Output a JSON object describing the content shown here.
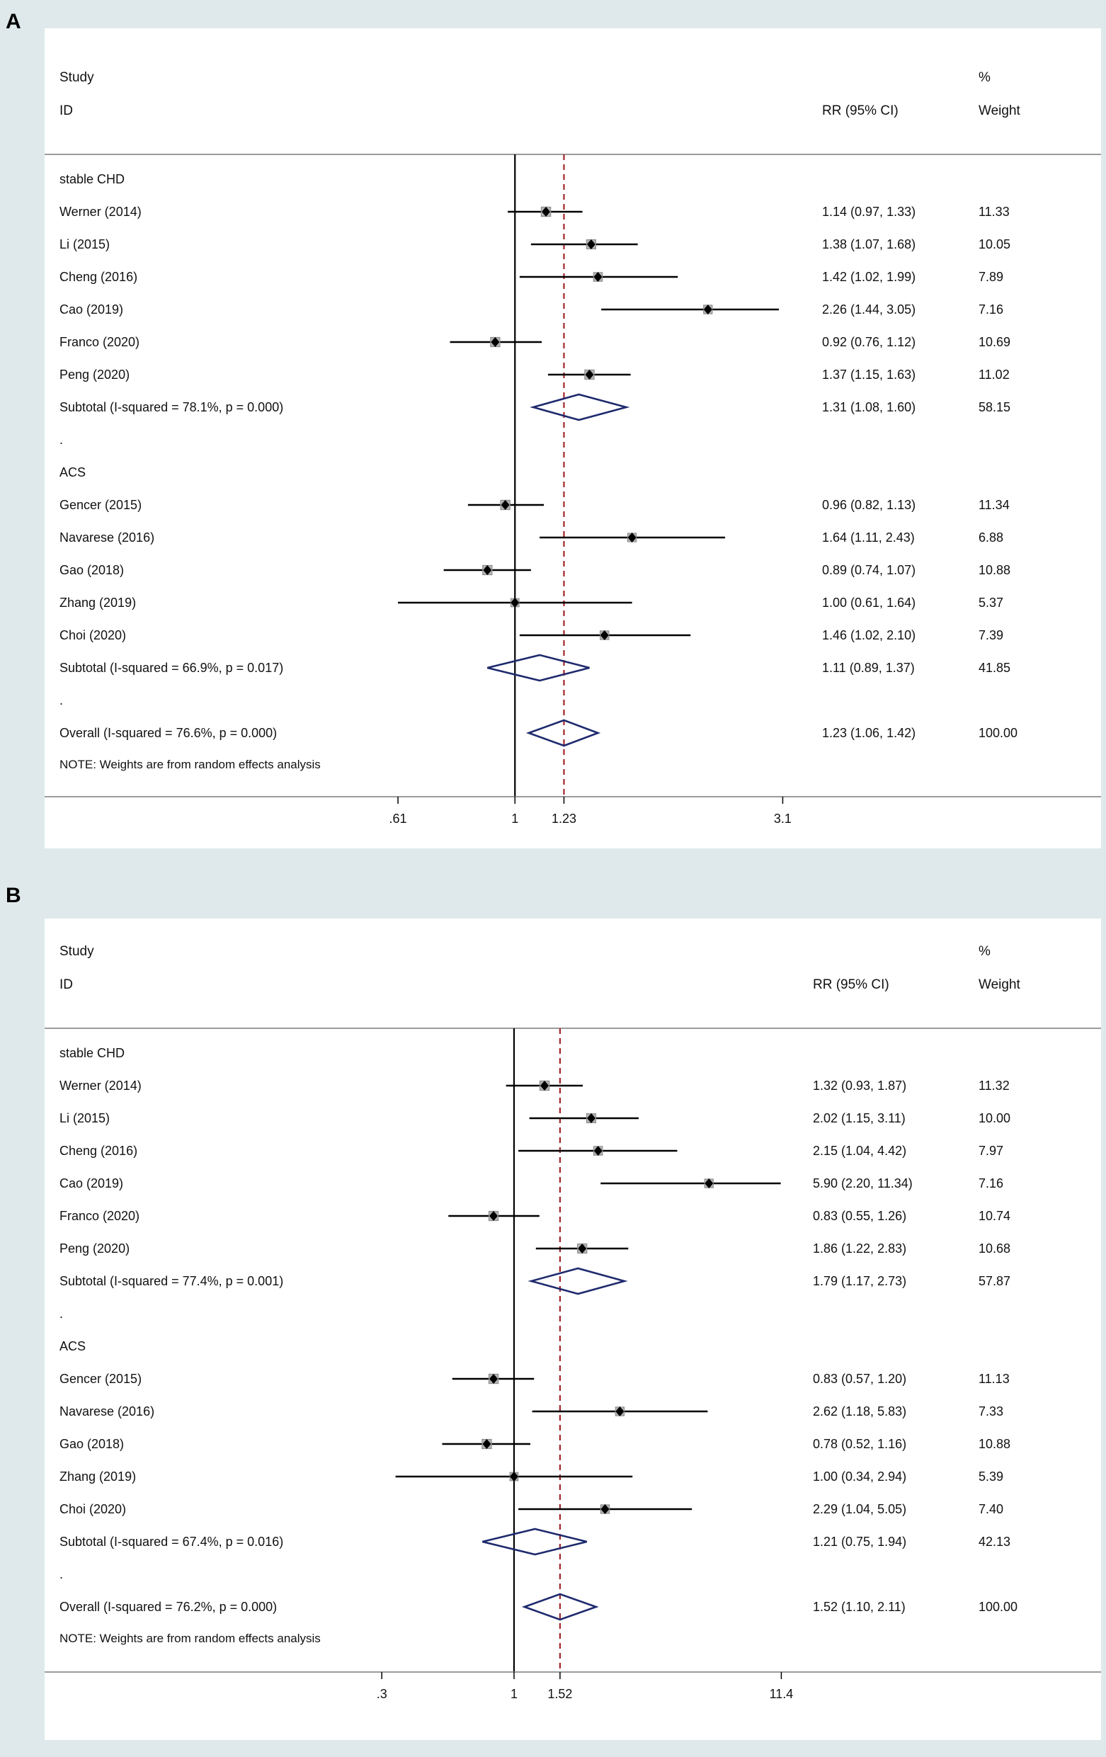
{
  "chart_data": [
    {
      "type": "forest",
      "panel_label": "A",
      "header": {
        "study": "Study",
        "id": "ID",
        "pct": "%",
        "ci": "RR (95% CI)",
        "weight": "Weight"
      },
      "x_scale": "log",
      "xlim": [
        0.4,
        3.5
      ],
      "xticks": [
        {
          "v": 0.61,
          "label": ".61"
        },
        {
          "v": 1,
          "label": "1"
        },
        {
          "v": 1.23,
          "label": "1.23"
        },
        {
          "v": 3.1,
          "label": "3.1"
        }
      ],
      "null_line": 1,
      "overall_line": 1.23,
      "rows": [
        {
          "kind": "group",
          "label": "stable CHD"
        },
        {
          "kind": "study",
          "label": "Werner (2014)",
          "rr": 1.14,
          "lo": 0.97,
          "hi": 1.33,
          "ci_text": "1.14 (0.97, 1.33)",
          "weight": "11.33"
        },
        {
          "kind": "study",
          "label": "Li (2015)",
          "rr": 1.38,
          "lo": 1.07,
          "hi": 1.68,
          "ci_text": "1.38 (1.07, 1.68)",
          "weight": "10.05"
        },
        {
          "kind": "study",
          "label": "Cheng (2016)",
          "rr": 1.42,
          "lo": 1.02,
          "hi": 1.99,
          "ci_text": "1.42 (1.02, 1.99)",
          "weight": "7.89"
        },
        {
          "kind": "study",
          "label": "Cao (2019)",
          "rr": 2.26,
          "lo": 1.44,
          "hi": 3.05,
          "ci_text": "2.26 (1.44, 3.05)",
          "weight": "7.16"
        },
        {
          "kind": "study",
          "label": "Franco (2020)",
          "rr": 0.92,
          "lo": 0.76,
          "hi": 1.12,
          "ci_text": "0.92 (0.76, 1.12)",
          "weight": "10.69"
        },
        {
          "kind": "study",
          "label": "Peng (2020)",
          "rr": 1.37,
          "lo": 1.15,
          "hi": 1.63,
          "ci_text": "1.37 (1.15, 1.63)",
          "weight": "11.02"
        },
        {
          "kind": "subtotal",
          "label": "Subtotal  (I-squared = 78.1%, p = 0.000)",
          "rr": 1.31,
          "lo": 1.08,
          "hi": 1.6,
          "ci_text": "1.31 (1.08, 1.60)",
          "weight": "58.15"
        },
        {
          "kind": "spacer",
          "label": "."
        },
        {
          "kind": "group",
          "label": "ACS"
        },
        {
          "kind": "study",
          "label": "Gencer (2015)",
          "rr": 0.96,
          "lo": 0.82,
          "hi": 1.13,
          "ci_text": "0.96 (0.82, 1.13)",
          "weight": "11.34"
        },
        {
          "kind": "study",
          "label": "Navarese (2016)",
          "rr": 1.64,
          "lo": 1.11,
          "hi": 2.43,
          "ci_text": "1.64 (1.11, 2.43)",
          "weight": "6.88"
        },
        {
          "kind": "study",
          "label": "Gao (2018)",
          "rr": 0.89,
          "lo": 0.74,
          "hi": 1.07,
          "ci_text": "0.89 (0.74, 1.07)",
          "weight": "10.88"
        },
        {
          "kind": "study",
          "label": "Zhang (2019)",
          "rr": 1.0,
          "lo": 0.61,
          "hi": 1.64,
          "ci_text": "1.00 (0.61, 1.64)",
          "weight": "5.37"
        },
        {
          "kind": "study",
          "label": "Choi (2020)",
          "rr": 1.46,
          "lo": 1.02,
          "hi": 2.1,
          "ci_text": "1.46 (1.02, 2.10)",
          "weight": "7.39"
        },
        {
          "kind": "subtotal",
          "label": "Subtotal  (I-squared = 66.9%, p = 0.017)",
          "rr": 1.11,
          "lo": 0.89,
          "hi": 1.37,
          "ci_text": "1.11 (0.89, 1.37)",
          "weight": "41.85"
        },
        {
          "kind": "spacer",
          "label": "."
        },
        {
          "kind": "subtotal",
          "label": "Overall  (I-squared = 76.6%, p = 0.000)",
          "rr": 1.23,
          "lo": 1.06,
          "hi": 1.42,
          "ci_text": "1.23 (1.06, 1.42)",
          "weight": "100.00"
        }
      ],
      "note": "NOTE: Weights are from random effects analysis"
    },
    {
      "type": "forest",
      "panel_label": "B",
      "header": {
        "study": "Study",
        "id": "ID",
        "pct": "%",
        "ci": "RR (95% CI)",
        "weight": "Weight"
      },
      "x_scale": "log",
      "xlim": [
        0.14,
        15
      ],
      "xticks": [
        {
          "v": 0.3,
          "label": ".3"
        },
        {
          "v": 1,
          "label": "1"
        },
        {
          "v": 1.52,
          "label": "1.52"
        },
        {
          "v": 11.4,
          "label": "11.4"
        }
      ],
      "null_line": 1,
      "overall_line": 1.52,
      "rows": [
        {
          "kind": "group",
          "label": "stable CHD"
        },
        {
          "kind": "study",
          "label": "Werner (2014)",
          "rr": 1.32,
          "lo": 0.93,
          "hi": 1.87,
          "ci_text": "1.32 (0.93, 1.87)",
          "weight": "11.32"
        },
        {
          "kind": "study",
          "label": "Li (2015)",
          "rr": 2.02,
          "lo": 1.15,
          "hi": 3.11,
          "ci_text": "2.02 (1.15, 3.11)",
          "weight": "10.00"
        },
        {
          "kind": "study",
          "label": "Cheng (2016)",
          "rr": 2.15,
          "lo": 1.04,
          "hi": 4.42,
          "ci_text": "2.15 (1.04, 4.42)",
          "weight": "7.97"
        },
        {
          "kind": "study",
          "label": "Cao (2019)",
          "rr": 5.9,
          "lo": 2.2,
          "hi": 11.34,
          "ci_text": "5.90 (2.20, 11.34)",
          "weight": "7.16"
        },
        {
          "kind": "study",
          "label": "Franco (2020)",
          "rr": 0.83,
          "lo": 0.55,
          "hi": 1.26,
          "ci_text": "0.83 (0.55, 1.26)",
          "weight": "10.74"
        },
        {
          "kind": "study",
          "label": "Peng (2020)",
          "rr": 1.86,
          "lo": 1.22,
          "hi": 2.83,
          "ci_text": "1.86 (1.22, 2.83)",
          "weight": "10.68"
        },
        {
          "kind": "subtotal",
          "label": "Subtotal  (I-squared = 77.4%, p = 0.001)",
          "rr": 1.79,
          "lo": 1.17,
          "hi": 2.73,
          "ci_text": "1.79 (1.17, 2.73)",
          "weight": "57.87"
        },
        {
          "kind": "spacer",
          "label": "."
        },
        {
          "kind": "group",
          "label": "ACS"
        },
        {
          "kind": "study",
          "label": "Gencer (2015)",
          "rr": 0.83,
          "lo": 0.57,
          "hi": 1.2,
          "ci_text": "0.83 (0.57, 1.20)",
          "weight": "11.13"
        },
        {
          "kind": "study",
          "label": "Navarese (2016)",
          "rr": 2.62,
          "lo": 1.18,
          "hi": 5.83,
          "ci_text": "2.62 (1.18, 5.83)",
          "weight": "7.33"
        },
        {
          "kind": "study",
          "label": "Gao (2018)",
          "rr": 0.78,
          "lo": 0.52,
          "hi": 1.16,
          "ci_text": "0.78 (0.52, 1.16)",
          "weight": "10.88"
        },
        {
          "kind": "study",
          "label": "Zhang (2019)",
          "rr": 1.0,
          "lo": 0.34,
          "hi": 2.94,
          "ci_text": "1.00 (0.34, 2.94)",
          "weight": "5.39"
        },
        {
          "kind": "study",
          "label": "Choi (2020)",
          "rr": 2.29,
          "lo": 1.04,
          "hi": 5.05,
          "ci_text": "2.29 (1.04, 5.05)",
          "weight": "7.40"
        },
        {
          "kind": "subtotal",
          "label": "Subtotal  (I-squared = 67.4%, p = 0.016)",
          "rr": 1.21,
          "lo": 0.75,
          "hi": 1.94,
          "ci_text": "1.21 (0.75, 1.94)",
          "weight": "42.13"
        },
        {
          "kind": "spacer",
          "label": "."
        },
        {
          "kind": "subtotal",
          "label": "Overall  (I-squared = 76.2%, p = 0.000)",
          "rr": 1.52,
          "lo": 1.1,
          "hi": 2.11,
          "ci_text": "1.52 (1.10, 2.11)",
          "weight": "100.00"
        }
      ],
      "note": "NOTE: Weights are from random effects analysis"
    }
  ],
  "colors": {
    "diamond": "#1e2a6e",
    "ref_line": "#a3262a",
    "box": "#b3b3b3",
    "axis": "#000000",
    "panel_bg": "#ffffff",
    "outer_bg": "#dfe9ec",
    "separator": "#7a7a7a"
  }
}
